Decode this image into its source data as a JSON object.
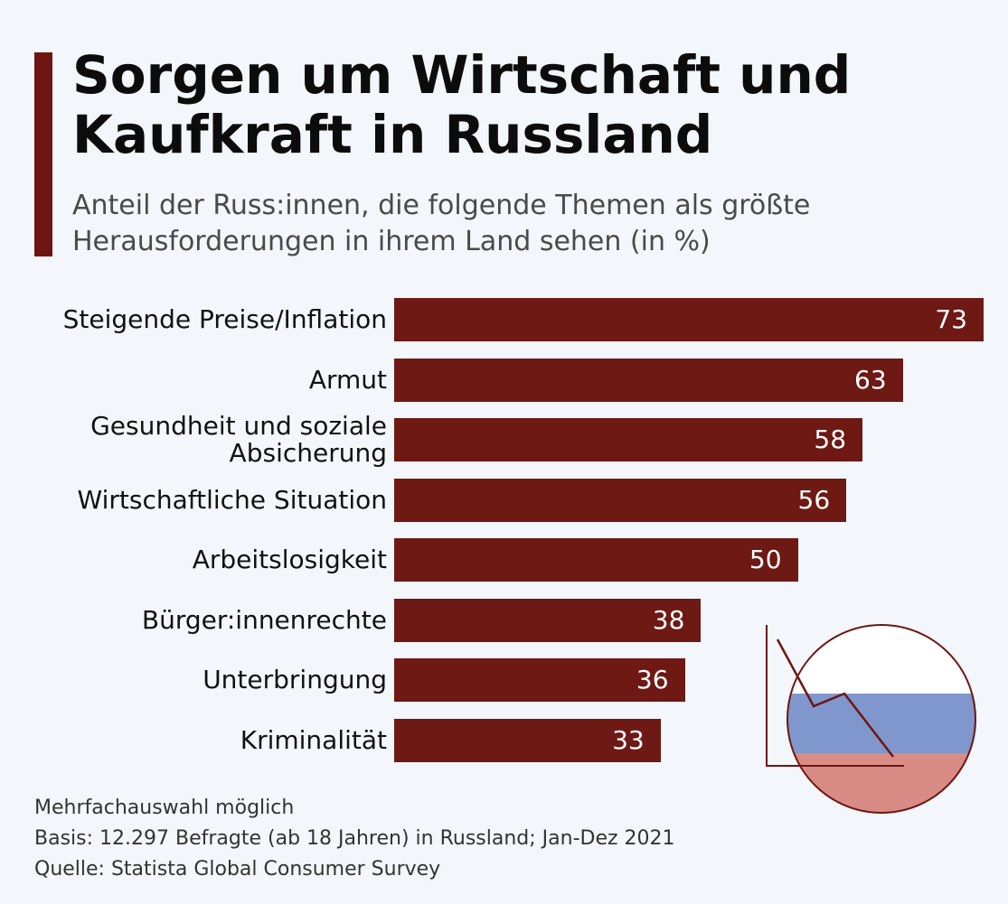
{
  "header": {
    "title": "Sorgen um Wirtschaft und Kaufkraft in Russland",
    "subtitle": "Anteil der Russ:innen, die folgende Themen als größte Herausforderungen in ihrem Land sehen (in %)"
  },
  "chart_data": {
    "type": "bar",
    "orientation": "horizontal",
    "categories": [
      "Steigende Preise/Inflation",
      "Armut",
      "Gesundheit und soziale Absicherung",
      "Wirtschaftliche Situation",
      "Arbeitslosigkeit",
      "Bürger:innenrechte",
      "Unterbringung",
      "Kriminalität"
    ],
    "values": [
      73,
      63,
      58,
      56,
      50,
      38,
      36,
      33
    ],
    "xlim": [
      0,
      73
    ],
    "grid": false,
    "bar_color": "#6e1914"
  },
  "footer": {
    "note": "Mehrfachauswahl möglich",
    "basis": "Basis: 12.297 Befragte (ab 18 Jahren) in Russland; Jan-Dez 2021",
    "source": "Quelle: Statista Global Consumer Survey"
  },
  "colors": {
    "accent": "#6e1512",
    "flag_white": "#ffffff",
    "flag_blue": "#7f97cc",
    "flag_red": "#d98b86"
  },
  "decoration": {
    "icon": "russia-flag-icon"
  }
}
